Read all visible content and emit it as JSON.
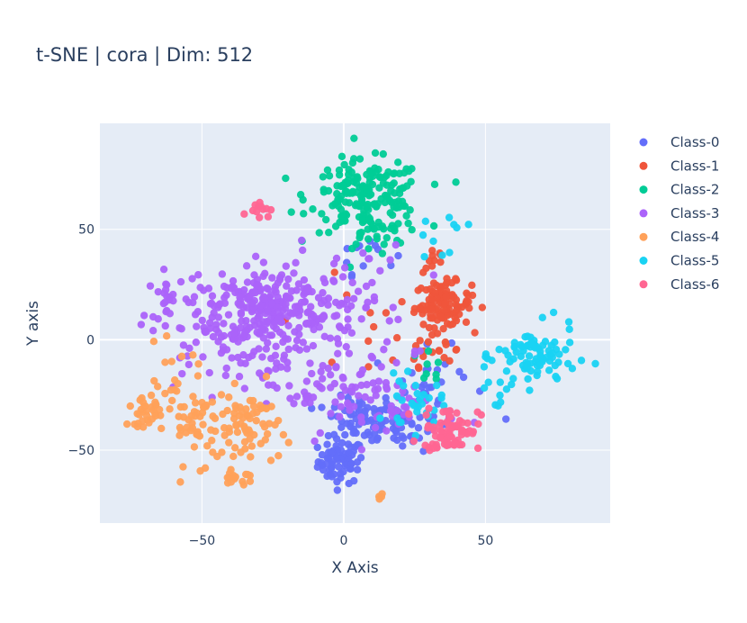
{
  "chart_data": {
    "type": "scatter",
    "title": "t-SNE | cora | Dim: 512",
    "xlabel": "X Axis",
    "ylabel": "Y axis",
    "xlim": [
      -86,
      94
    ],
    "ylim": [
      -83,
      98
    ],
    "xticks": [
      -50,
      0,
      50
    ],
    "yticks": [
      -50,
      0,
      50
    ],
    "xtick_labels": [
      "−50",
      "0",
      "50"
    ],
    "ytick_labels": [
      "−50",
      "0",
      "50"
    ],
    "grid": true,
    "legend_position": "top-right",
    "series": [
      {
        "name": "Class-0",
        "color": "#636efa",
        "clusters": [
          {
            "cx": -1,
            "cy": -55,
            "sx": 4,
            "sy": 5,
            "n": 70
          },
          {
            "cx": 6,
            "cy": -36,
            "sx": 6,
            "sy": 5,
            "n": 60
          },
          {
            "cx": 20,
            "cy": -38,
            "sx": 9,
            "sy": 6,
            "n": 50
          },
          {
            "cx": 8,
            "cy": 40,
            "sx": 5,
            "sy": 5,
            "n": 12
          },
          {
            "cx": 30,
            "cy": -20,
            "sx": 10,
            "sy": 8,
            "n": 25
          }
        ]
      },
      {
        "name": "Class-1",
        "color": "#ef553b",
        "clusters": [
          {
            "cx": 35,
            "cy": 16,
            "sx": 5,
            "sy": 5,
            "n": 110
          },
          {
            "cx": 32,
            "cy": 36,
            "sx": 2,
            "sy": 3,
            "n": 10
          },
          {
            "cx": 30,
            "cy": -5,
            "sx": 8,
            "sy": 7,
            "n": 18
          },
          {
            "cx": 10,
            "cy": 10,
            "sx": 15,
            "sy": 20,
            "n": 12
          }
        ]
      },
      {
        "name": "Class-2",
        "color": "#00cc96",
        "clusters": [
          {
            "cx": 8,
            "cy": 65,
            "sx": 10,
            "sy": 8,
            "n": 180
          },
          {
            "cx": 10,
            "cy": 48,
            "sx": 6,
            "sy": 4,
            "n": 25
          },
          {
            "cx": 30,
            "cy": -12,
            "sx": 5,
            "sy": 5,
            "n": 8
          }
        ]
      },
      {
        "name": "Class-3",
        "color": "#ab63fa",
        "clusters": [
          {
            "cx": -27,
            "cy": 15,
            "sx": 9,
            "sy": 8,
            "n": 140
          },
          {
            "cx": -40,
            "cy": 5,
            "sx": 14,
            "sy": 14,
            "n": 150
          },
          {
            "cx": -5,
            "cy": 10,
            "sx": 14,
            "sy": 16,
            "n": 120
          },
          {
            "cx": -62,
            "cy": 22,
            "sx": 2,
            "sy": 5,
            "n": 15
          },
          {
            "cx": -5,
            "cy": -25,
            "sx": 10,
            "sy": 8,
            "n": 40
          },
          {
            "cx": 20,
            "cy": -30,
            "sx": 10,
            "sy": 7,
            "n": 45
          }
        ]
      },
      {
        "name": "Class-4",
        "color": "#ffa15a",
        "clusters": [
          {
            "cx": -70,
            "cy": -33,
            "sx": 3,
            "sy": 3,
            "n": 30
          },
          {
            "cx": -50,
            "cy": -38,
            "sx": 6,
            "sy": 9,
            "n": 55
          },
          {
            "cx": -33,
            "cy": -40,
            "sx": 5,
            "sy": 9,
            "n": 60
          },
          {
            "cx": -38,
            "cy": -62,
            "sx": 3,
            "sy": 3,
            "n": 14
          },
          {
            "cx": -60,
            "cy": -20,
            "sx": 6,
            "sy": 8,
            "n": 20
          },
          {
            "cx": 13,
            "cy": -71,
            "sx": 1,
            "sy": 1,
            "n": 4
          }
        ]
      },
      {
        "name": "Class-5",
        "color": "#19d3f3",
        "clusters": [
          {
            "cx": 68,
            "cy": -8,
            "sx": 7,
            "sy": 7,
            "n": 85
          },
          {
            "cx": 25,
            "cy": -30,
            "sx": 5,
            "sy": 6,
            "n": 30
          },
          {
            "cx": 33,
            "cy": 48,
            "sx": 5,
            "sy": 5,
            "n": 10
          },
          {
            "cx": 55,
            "cy": -20,
            "sx": 4,
            "sy": 8,
            "n": 10
          }
        ]
      },
      {
        "name": "Class-6",
        "color": "#ff6692",
        "clusters": [
          {
            "cx": 38,
            "cy": -40,
            "sx": 5,
            "sy": 5,
            "n": 65
          },
          {
            "cx": -30,
            "cy": 60,
            "sx": 2,
            "sy": 2,
            "n": 12
          },
          {
            "cx": 30,
            "cy": -50,
            "sx": 3,
            "sy": 2,
            "n": 8
          }
        ]
      }
    ]
  }
}
